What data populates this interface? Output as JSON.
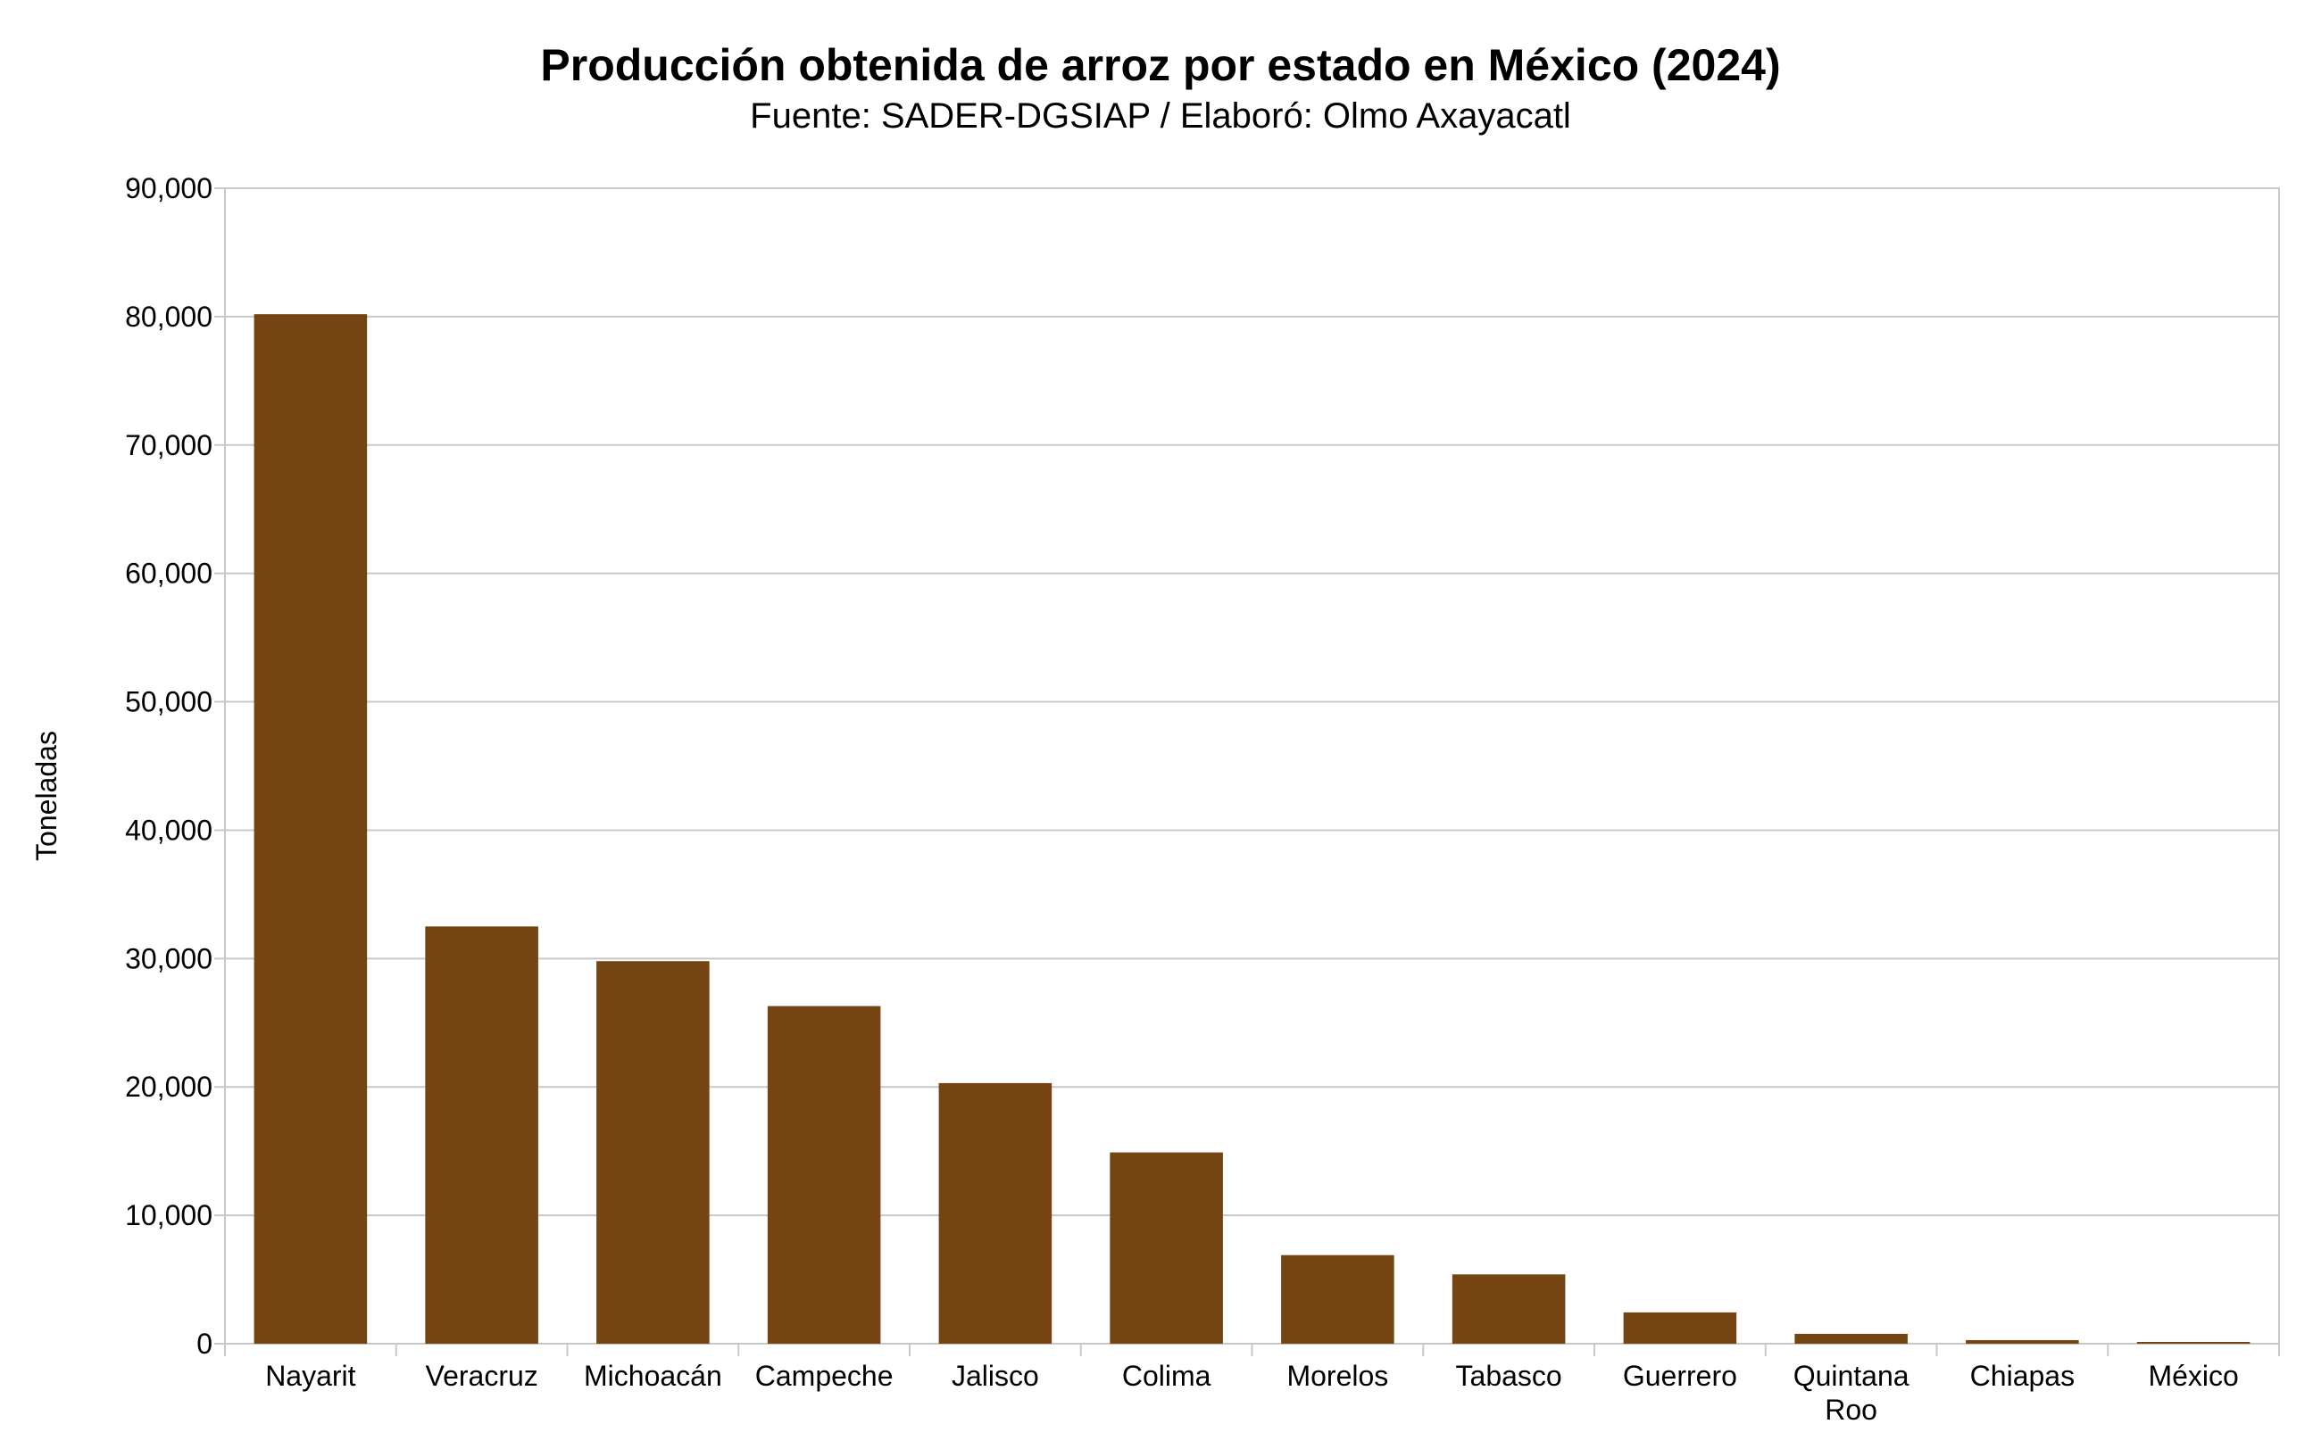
{
  "chart_data": {
    "type": "bar",
    "title": "Producción obtenida de arroz por estado en México (2024)",
    "subtitle": "Fuente: SADER-DGSIAP / Elaboró: Olmo Axayacatl",
    "xlabel": "",
    "ylabel": "Toneladas",
    "ylim": [
      0,
      90000
    ],
    "yticks": [
      0,
      10000,
      20000,
      30000,
      40000,
      50000,
      60000,
      70000,
      80000,
      90000
    ],
    "ytick_labels": [
      "0",
      "10,000",
      "20,000",
      "30,000",
      "40,000",
      "50,000",
      "60,000",
      "70,000",
      "80,000",
      "90,000"
    ],
    "categories": [
      "Nayarit",
      "Veracruz",
      "Michoacán",
      "Campeche",
      "Jalisco",
      "Colima",
      "Morelos",
      "Tabasco",
      "Guerrero",
      "Quintana Roo",
      "Chiapas",
      "México"
    ],
    "values": [
      80190,
      32500,
      29800,
      26300,
      20300,
      14900,
      6900,
      5400,
      2440,
      770,
      280,
      140
    ],
    "grid": true,
    "legend": "none",
    "bar_color": "#744513",
    "grid_color": "#c8c8c8"
  }
}
